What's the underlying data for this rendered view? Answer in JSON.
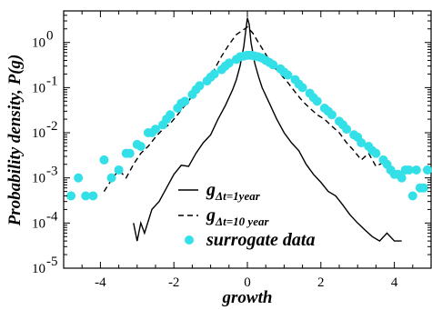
{
  "chart_data": {
    "type": "line",
    "xlabel": "growth",
    "ylabel": "Probability density, P(g)",
    "xlim": [
      -5,
      5
    ],
    "ylim": [
      1e-05,
      5
    ],
    "yscale": "log",
    "grid": false,
    "legend_position": "bottom-center",
    "x_ticks": [
      -4,
      -2,
      0,
      2,
      4
    ],
    "x_tick_labels": [
      "-4",
      "-2",
      "0",
      "2",
      "4"
    ],
    "y_ticks": [
      1e-05,
      0.0001,
      0.001,
      0.01,
      0.1,
      1
    ],
    "y_tick_labels": [
      {
        "base": "10",
        "exp": "-5"
      },
      {
        "base": "10",
        "exp": "-4"
      },
      {
        "base": "10",
        "exp": "-3"
      },
      {
        "base": "10",
        "exp": "-2"
      },
      {
        "base": "10",
        "exp": "-1"
      },
      {
        "base": "10",
        "exp": "0"
      }
    ],
    "legend": [
      {
        "main": "g",
        "sub": "Δt=1year",
        "style": "solid"
      },
      {
        "main": "g",
        "sub": "Δt=10 year",
        "style": "dashed"
      },
      {
        "main": "surrogate data",
        "style": "marker"
      }
    ],
    "series": [
      {
        "style": "solid",
        "color": "#000000",
        "points": [
          [
            -3.1,
            0.0001
          ],
          [
            -3.0,
            4e-05
          ],
          [
            -2.9,
            0.0001
          ],
          [
            -2.8,
            6e-05
          ],
          [
            -2.6,
            0.0002
          ],
          [
            -2.4,
            0.0003
          ],
          [
            -2.2,
            0.0006
          ],
          [
            -2.0,
            0.0012
          ],
          [
            -1.8,
            0.0019
          ],
          [
            -1.6,
            0.0018
          ],
          [
            -1.4,
            0.0035
          ],
          [
            -1.2,
            0.006
          ],
          [
            -1.0,
            0.009
          ],
          [
            -0.8,
            0.02
          ],
          [
            -0.6,
            0.04
          ],
          [
            -0.4,
            0.09
          ],
          [
            -0.3,
            0.15
          ],
          [
            -0.2,
            0.3
          ],
          [
            -0.1,
            0.8
          ],
          [
            0.0,
            3.5
          ],
          [
            0.05,
            2.5
          ],
          [
            0.1,
            1.0
          ],
          [
            0.2,
            0.35
          ],
          [
            0.3,
            0.18
          ],
          [
            0.4,
            0.1
          ],
          [
            0.6,
            0.045
          ],
          [
            0.8,
            0.02
          ],
          [
            1.0,
            0.01
          ],
          [
            1.2,
            0.006
          ],
          [
            1.4,
            0.004
          ],
          [
            1.6,
            0.002
          ],
          [
            1.8,
            0.0012
          ],
          [
            2.0,
            0.0008
          ],
          [
            2.2,
            0.0005
          ],
          [
            2.4,
            0.0004
          ],
          [
            2.6,
            0.00025
          ],
          [
            2.8,
            0.00015
          ],
          [
            3.0,
            0.0001
          ],
          [
            3.2,
            7e-05
          ],
          [
            3.4,
            5e-05
          ],
          [
            3.6,
            4e-05
          ],
          [
            3.8,
            6e-05
          ],
          [
            4.0,
            4e-05
          ],
          [
            4.2,
            4e-05
          ]
        ]
      },
      {
        "style": "dashed",
        "color": "#000000",
        "points": [
          [
            -3.9,
            0.0005
          ],
          [
            -3.7,
            0.0009
          ],
          [
            -3.5,
            0.0015
          ],
          [
            -3.3,
            0.001
          ],
          [
            -3.1,
            0.002
          ],
          [
            -2.9,
            0.0035
          ],
          [
            -2.7,
            0.005
          ],
          [
            -2.5,
            0.008
          ],
          [
            -2.3,
            0.012
          ],
          [
            -2.1,
            0.016
          ],
          [
            -1.9,
            0.025
          ],
          [
            -1.7,
            0.04
          ],
          [
            -1.5,
            0.065
          ],
          [
            -1.3,
            0.1
          ],
          [
            -1.1,
            0.15
          ],
          [
            -0.9,
            0.25
          ],
          [
            -0.7,
            0.5
          ],
          [
            -0.5,
            0.9
          ],
          [
            -0.3,
            1.5
          ],
          [
            -0.15,
            1.8
          ],
          [
            0.0,
            2.2
          ],
          [
            0.15,
            1.6
          ],
          [
            0.3,
            1.0
          ],
          [
            0.5,
            0.55
          ],
          [
            0.7,
            0.3
          ],
          [
            0.9,
            0.2
          ],
          [
            1.1,
            0.13
          ],
          [
            1.3,
            0.08
          ],
          [
            1.5,
            0.05
          ],
          [
            1.7,
            0.035
          ],
          [
            1.9,
            0.025
          ],
          [
            2.1,
            0.02
          ],
          [
            2.3,
            0.014
          ],
          [
            2.5,
            0.01
          ],
          [
            2.7,
            0.006
          ],
          [
            2.9,
            0.004
          ],
          [
            3.1,
            0.0025
          ],
          [
            3.3,
            0.0035
          ],
          [
            3.5,
            0.0018
          ],
          [
            3.7,
            0.0022
          ],
          [
            3.9,
            0.0015
          ],
          [
            4.1,
            0.001
          ]
        ]
      },
      {
        "style": "marker",
        "color": "#33e0e8",
        "points": [
          [
            -4.8,
            0.0004
          ],
          [
            -4.6,
            0.001
          ],
          [
            -4.4,
            0.0004
          ],
          [
            -4.2,
            0.0004
          ],
          [
            -3.9,
            0.0025
          ],
          [
            -3.7,
            0.001
          ],
          [
            -3.5,
            0.0015
          ],
          [
            -3.3,
            0.0035
          ],
          [
            -3.2,
            0.0035
          ],
          [
            -3.0,
            0.0055
          ],
          [
            -2.9,
            0.005
          ],
          [
            -2.7,
            0.01
          ],
          [
            -2.6,
            0.01
          ],
          [
            -2.5,
            0.012
          ],
          [
            -2.3,
            0.015
          ],
          [
            -2.2,
            0.02
          ],
          [
            -2.1,
            0.025
          ],
          [
            -1.9,
            0.035
          ],
          [
            -1.8,
            0.045
          ],
          [
            -1.7,
            0.05
          ],
          [
            -1.5,
            0.07
          ],
          [
            -1.4,
            0.09
          ],
          [
            -1.3,
            0.11
          ],
          [
            -1.1,
            0.14
          ],
          [
            -1.0,
            0.17
          ],
          [
            -0.9,
            0.2
          ],
          [
            -0.7,
            0.25
          ],
          [
            -0.6,
            0.3
          ],
          [
            -0.5,
            0.35
          ],
          [
            -0.3,
            0.42
          ],
          [
            -0.2,
            0.48
          ],
          [
            -0.1,
            0.5
          ],
          [
            0.0,
            0.52
          ],
          [
            0.1,
            0.52
          ],
          [
            0.2,
            0.5
          ],
          [
            0.3,
            0.48
          ],
          [
            0.4,
            0.45
          ],
          [
            0.5,
            0.4
          ],
          [
            0.6,
            0.36
          ],
          [
            0.7,
            0.32
          ],
          [
            0.9,
            0.26
          ],
          [
            1.0,
            0.22
          ],
          [
            1.1,
            0.19
          ],
          [
            1.3,
            0.15
          ],
          [
            1.4,
            0.12
          ],
          [
            1.5,
            0.1
          ],
          [
            1.7,
            0.075
          ],
          [
            1.8,
            0.06
          ],
          [
            1.9,
            0.05
          ],
          [
            2.1,
            0.035
          ],
          [
            2.2,
            0.03
          ],
          [
            2.3,
            0.025
          ],
          [
            2.5,
            0.018
          ],
          [
            2.6,
            0.015
          ],
          [
            2.7,
            0.012
          ],
          [
            2.9,
            0.009
          ],
          [
            3.0,
            0.008
          ],
          [
            3.1,
            0.006
          ],
          [
            3.3,
            0.005
          ],
          [
            3.4,
            0.004
          ],
          [
            3.5,
            0.0035
          ],
          [
            3.7,
            0.0025
          ],
          [
            3.8,
            0.002
          ],
          [
            3.9,
            0.0015
          ],
          [
            4.0,
            0.0012
          ],
          [
            4.1,
            0.0012
          ],
          [
            4.2,
            0.001
          ],
          [
            4.3,
            0.0015
          ],
          [
            4.4,
            0.0015
          ],
          [
            4.5,
            0.0004
          ],
          [
            4.6,
            0.0015
          ],
          [
            4.7,
            0.0006
          ],
          [
            4.8,
            0.0006
          ],
          [
            4.9,
            0.0015
          ]
        ]
      }
    ]
  }
}
